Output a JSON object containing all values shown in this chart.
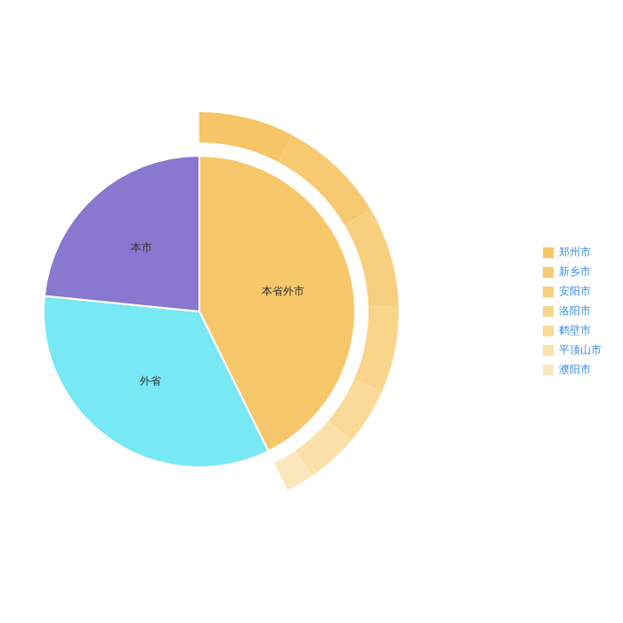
{
  "chart_data": [
    {
      "type": "pie",
      "categories": [
        "本省外市",
        "外省",
        "本市"
      ],
      "values": [
        42.7,
        33.9,
        23.4
      ],
      "colors": [
        "#f7c76b",
        "#77e8f4",
        "#8878d0"
      ]
    },
    {
      "type": "donut",
      "legend": "right",
      "categories": [
        "郑州市",
        "新乡市",
        "安阳市",
        "洛阳市",
        "鹤壁市",
        "平顶山市",
        "濮阳市"
      ],
      "values": [
        18.1,
        20.5,
        18.9,
        16.4,
        10.9,
        9.9,
        5.3
      ],
      "colors": [
        "#f6c567",
        "#f7ca72",
        "#f8cf7e",
        "#f9d58b",
        "#fada98",
        "#fbe0aa",
        "#fce7bd"
      ]
    }
  ]
}
